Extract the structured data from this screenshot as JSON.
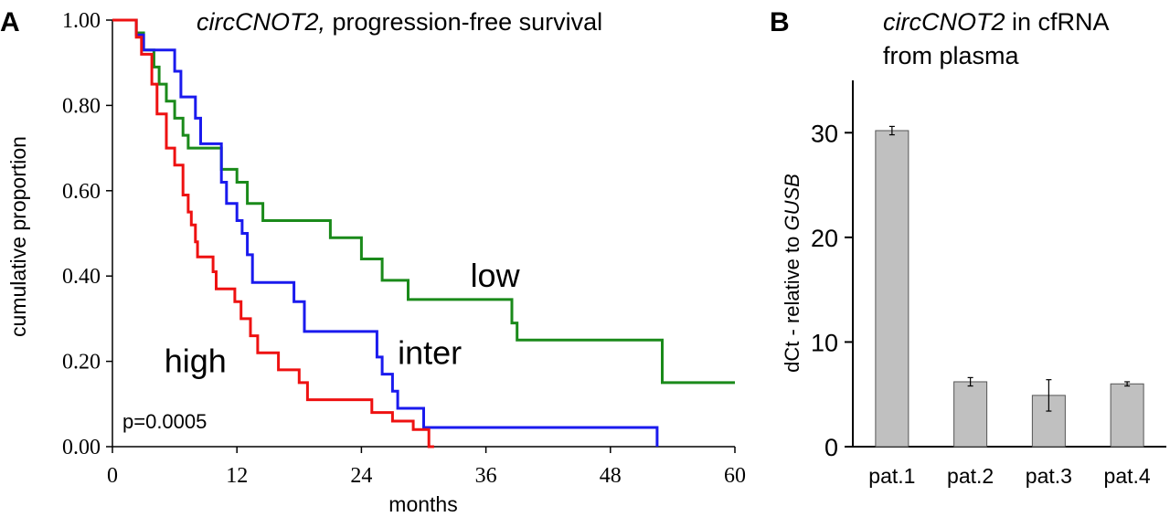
{
  "chart_data": [
    {
      "panel_label": "A",
      "type": "line",
      "title_italic": "circCNOT2,",
      "title_rest": " progression-free survival",
      "xlabel": "months",
      "ylabel": "cumulative proportion",
      "xlim": [
        0,
        60
      ],
      "ylim": [
        0,
        1
      ],
      "xticks": [
        0,
        12,
        24,
        36,
        48,
        60
      ],
      "xtick_labels": [
        "0",
        "12",
        "24",
        "36",
        "48",
        "60"
      ],
      "yticks": [
        0,
        0.2,
        0.4,
        0.6,
        0.8,
        1.0
      ],
      "ytick_labels": [
        "0.00",
        "0.20",
        "0.40",
        "0.60",
        "0.80",
        "1.00"
      ],
      "annotation": "p=0.0005",
      "series": [
        {
          "name": "low",
          "color": "#1a8a1a",
          "label_at": [
            34.5,
            0.4
          ],
          "points": [
            [
              0,
              1.0
            ],
            [
              2.3,
              1.0
            ],
            [
              2.3,
              0.97
            ],
            [
              3,
              0.97
            ],
            [
              3,
              0.93
            ],
            [
              4,
              0.93
            ],
            [
              4,
              0.89
            ],
            [
              4.5,
              0.89
            ],
            [
              4.5,
              0.85
            ],
            [
              5.2,
              0.85
            ],
            [
              5.2,
              0.81
            ],
            [
              6,
              0.81
            ],
            [
              6,
              0.77
            ],
            [
              6.8,
              0.77
            ],
            [
              6.8,
              0.73
            ],
            [
              7.3,
              0.73
            ],
            [
              7.3,
              0.7
            ],
            [
              10.5,
              0.7
            ],
            [
              10.5,
              0.65
            ],
            [
              12,
              0.65
            ],
            [
              12,
              0.62
            ],
            [
              13,
              0.62
            ],
            [
              13,
              0.57
            ],
            [
              14.5,
              0.57
            ],
            [
              14.5,
              0.53
            ],
            [
              21,
              0.53
            ],
            [
              21,
              0.49
            ],
            [
              24,
              0.49
            ],
            [
              24,
              0.44
            ],
            [
              26,
              0.44
            ],
            [
              26,
              0.39
            ],
            [
              28.5,
              0.39
            ],
            [
              28.5,
              0.345
            ],
            [
              38.5,
              0.345
            ],
            [
              38.5,
              0.29
            ],
            [
              39,
              0.29
            ],
            [
              39,
              0.25
            ],
            [
              53,
              0.25
            ],
            [
              53,
              0.15
            ],
            [
              60,
              0.15
            ]
          ]
        },
        {
          "name": "inter",
          "color": "#1a1aee",
          "label_at": [
            27.5,
            0.22
          ],
          "points": [
            [
              0,
              1.0
            ],
            [
              2.3,
              1.0
            ],
            [
              2.3,
              0.965
            ],
            [
              3,
              0.965
            ],
            [
              3,
              0.93
            ],
            [
              6,
              0.93
            ],
            [
              6,
              0.88
            ],
            [
              6.6,
              0.88
            ],
            [
              6.6,
              0.82
            ],
            [
              8,
              0.82
            ],
            [
              8,
              0.77
            ],
            [
              8.5,
              0.77
            ],
            [
              8.5,
              0.71
            ],
            [
              10.5,
              0.71
            ],
            [
              10.5,
              0.62
            ],
            [
              11,
              0.62
            ],
            [
              11,
              0.57
            ],
            [
              12,
              0.57
            ],
            [
              12,
              0.53
            ],
            [
              12.5,
              0.53
            ],
            [
              12.5,
              0.5
            ],
            [
              13,
              0.5
            ],
            [
              13,
              0.45
            ],
            [
              13.5,
              0.45
            ],
            [
              13.5,
              0.385
            ],
            [
              17.5,
              0.385
            ],
            [
              17.5,
              0.34
            ],
            [
              18.5,
              0.34
            ],
            [
              18.5,
              0.27
            ],
            [
              25.5,
              0.27
            ],
            [
              25.5,
              0.21
            ],
            [
              26,
              0.21
            ],
            [
              26,
              0.17
            ],
            [
              27,
              0.17
            ],
            [
              27,
              0.13
            ],
            [
              27.5,
              0.13
            ],
            [
              27.5,
              0.09
            ],
            [
              30,
              0.09
            ],
            [
              30,
              0.045
            ],
            [
              52.5,
              0.045
            ],
            [
              52.5,
              0.0
            ]
          ]
        },
        {
          "name": "high",
          "color": "#ee1111",
          "label_at": [
            5,
            0.2
          ],
          "points": [
            [
              0,
              1.0
            ],
            [
              2.3,
              1.0
            ],
            [
              2.3,
              0.96
            ],
            [
              2.8,
              0.96
            ],
            [
              2.8,
              0.92
            ],
            [
              3.8,
              0.92
            ],
            [
              3.8,
              0.85
            ],
            [
              4.3,
              0.85
            ],
            [
              4.3,
              0.78
            ],
            [
              5.2,
              0.78
            ],
            [
              5.2,
              0.7
            ],
            [
              6,
              0.7
            ],
            [
              6,
              0.66
            ],
            [
              6.8,
              0.66
            ],
            [
              6.8,
              0.59
            ],
            [
              7.3,
              0.59
            ],
            [
              7.3,
              0.55
            ],
            [
              7.6,
              0.55
            ],
            [
              7.6,
              0.52
            ],
            [
              8,
              0.52
            ],
            [
              8,
              0.48
            ],
            [
              8.2,
              0.48
            ],
            [
              8.2,
              0.445
            ],
            [
              9.7,
              0.445
            ],
            [
              9.7,
              0.41
            ],
            [
              10,
              0.41
            ],
            [
              10,
              0.37
            ],
            [
              11.8,
              0.37
            ],
            [
              11.8,
              0.34
            ],
            [
              12.4,
              0.34
            ],
            [
              12.4,
              0.3
            ],
            [
              13.3,
              0.3
            ],
            [
              13.3,
              0.26
            ],
            [
              14,
              0.26
            ],
            [
              14,
              0.22
            ],
            [
              16,
              0.22
            ],
            [
              16,
              0.18
            ],
            [
              18,
              0.18
            ],
            [
              18,
              0.15
            ],
            [
              18.8,
              0.15
            ],
            [
              18.8,
              0.11
            ],
            [
              25,
              0.11
            ],
            [
              25,
              0.08
            ],
            [
              27,
              0.08
            ],
            [
              27,
              0.06
            ],
            [
              29,
              0.06
            ],
            [
              29,
              0.04
            ],
            [
              30.5,
              0.04
            ],
            [
              30.5,
              0.0
            ],
            [
              31,
              0.0
            ]
          ]
        }
      ]
    },
    {
      "panel_label": "B",
      "type": "bar",
      "title_italic": "circCNOT2",
      "title_rest": " in cfRNA",
      "title_line2": "from plasma",
      "ylabel_prefix": "dCt - relative to ",
      "ylabel_italic": "GUSB",
      "ylim": [
        0,
        35
      ],
      "yticks": [
        0,
        10,
        20,
        30
      ],
      "ytick_labels": [
        "0",
        "10",
        "20",
        "30"
      ],
      "categories": [
        "pat.1",
        "pat.2",
        "pat.3",
        "pat.4"
      ],
      "values": [
        30.2,
        6.2,
        4.9,
        6.0
      ],
      "errors": [
        0.4,
        0.4,
        1.5,
        0.2
      ],
      "bar_color": "#c0c0c0"
    }
  ]
}
